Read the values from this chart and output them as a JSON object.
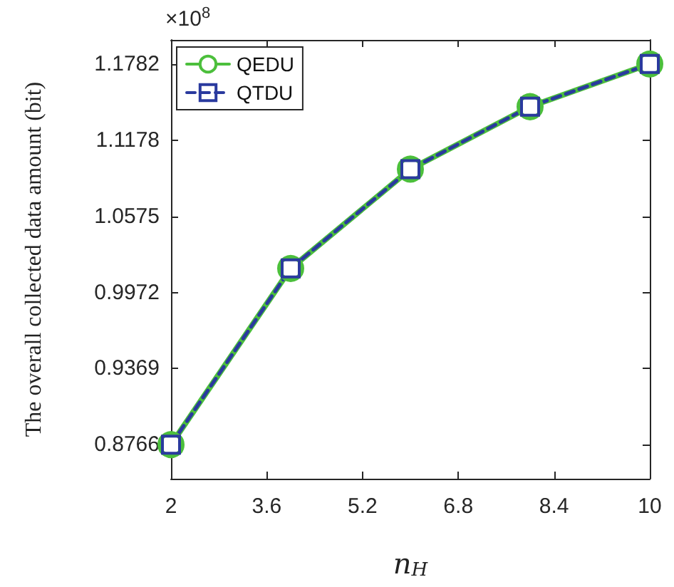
{
  "chart_data": {
    "type": "line",
    "xlabel": "n$_{H}$",
    "ylabel": "The overall collected data amount (bit)",
    "annotations": [
      "×10$^{8}$"
    ],
    "x": [
      2,
      4,
      6,
      8,
      10
    ],
    "series": [
      {
        "name": "QEDU",
        "color": "#4cbf3c",
        "values": [
          0.8766,
          1.0162,
          1.0949,
          1.1444,
          1.1782
        ],
        "marker": "circle",
        "line_style": "solid"
      },
      {
        "name": "QTDU",
        "color": "#2a3a9e",
        "values": [
          0.8766,
          1.0162,
          1.0949,
          1.1444,
          1.1782
        ],
        "marker": "square",
        "line_style": "dashed"
      }
    ],
    "xlim": [
      2,
      10
    ],
    "xticks": [
      2,
      3.6,
      5.2,
      6.8,
      8.4,
      10
    ],
    "ylim": [
      0.8496,
      1.1973
    ],
    "yticks": [
      0.8766,
      0.9369,
      0.9972,
      1.0575,
      1.1178,
      1.1782
    ],
    "grid": false,
    "legend": "top left"
  }
}
